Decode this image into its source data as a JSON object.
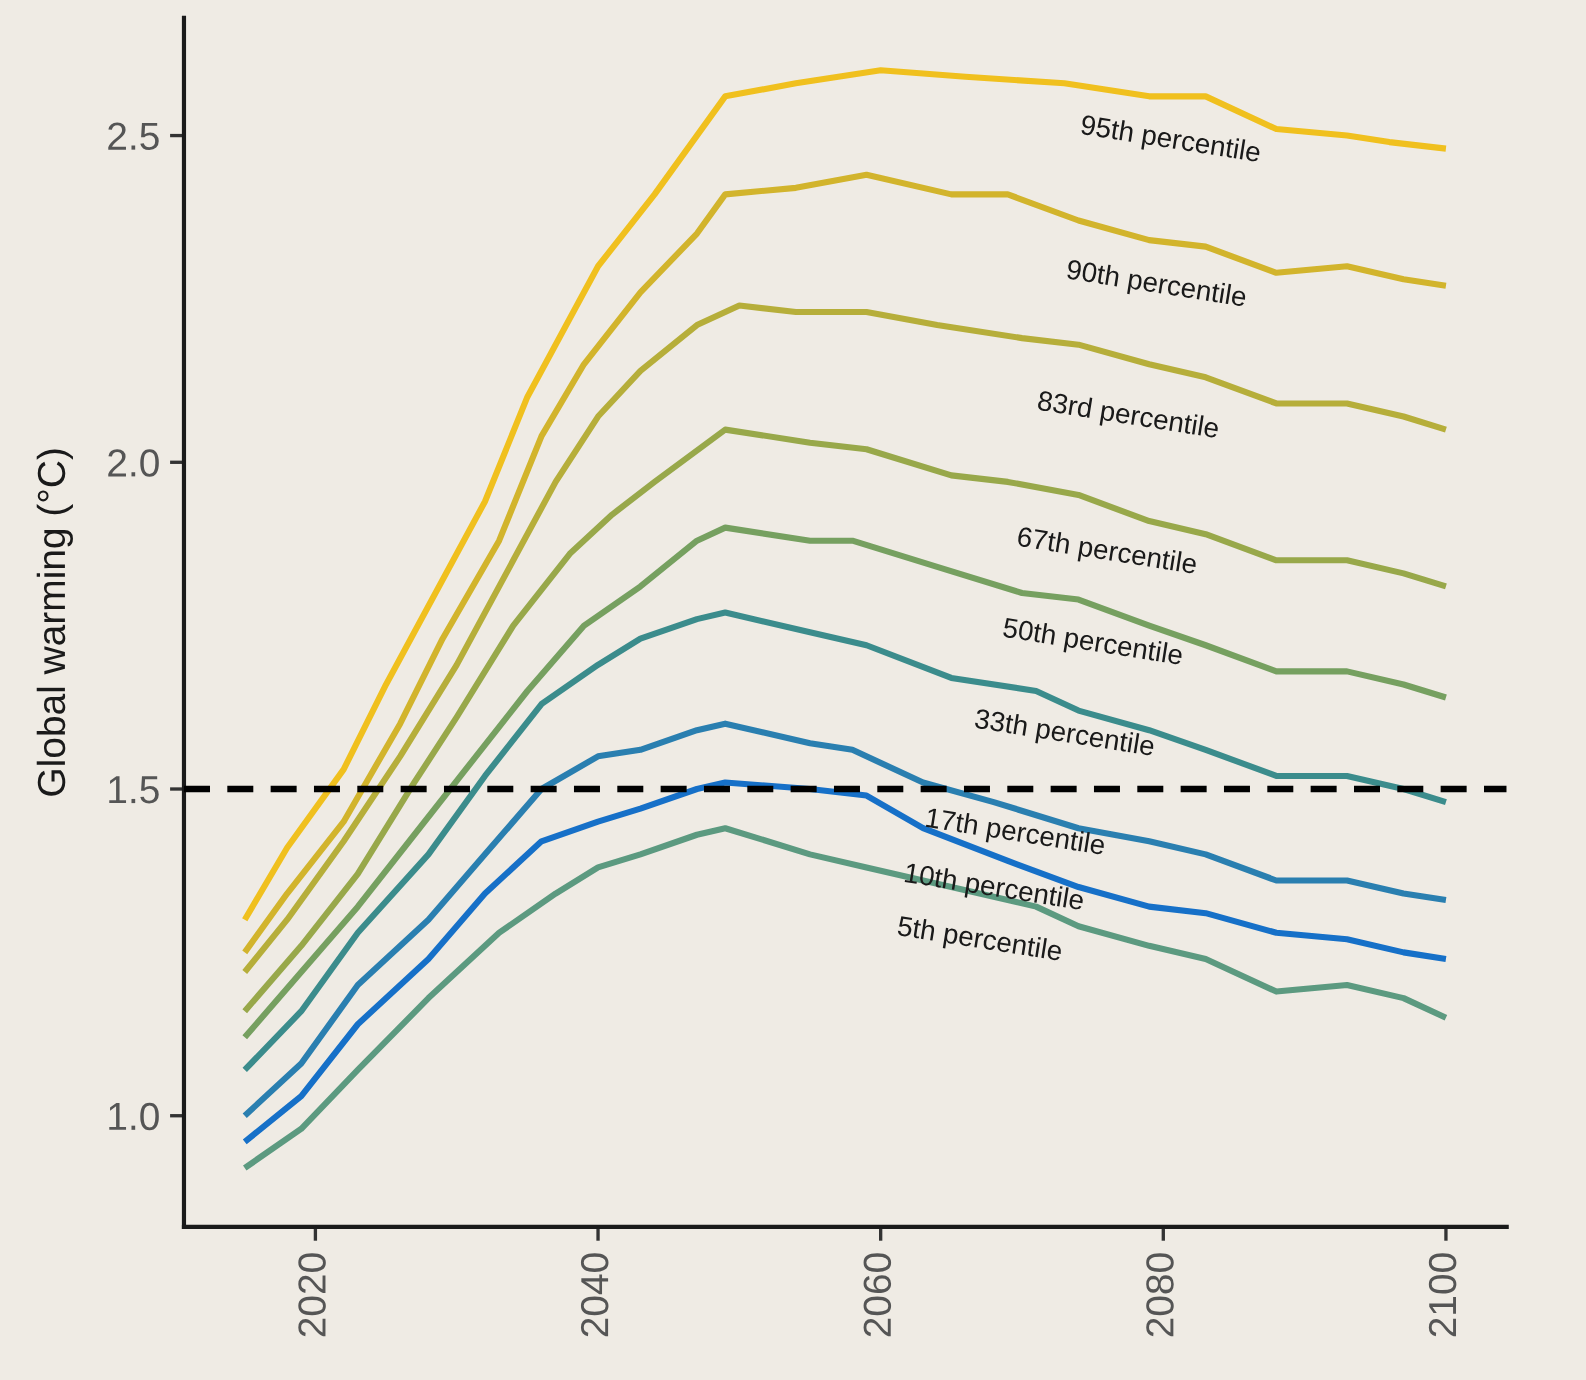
{
  "chart_data": {
    "type": "line",
    "ylabel": "Global warming (°C)",
    "xlim": [
      2010.7,
      2104.3
    ],
    "ylim": [
      0.83,
      2.68
    ],
    "xticks": [
      2020,
      2040,
      2060,
      2080,
      2100
    ],
    "yticks": [
      {
        "value": 1,
        "label": "1.0"
      },
      1.5,
      {
        "value": 2,
        "label": "2.0"
      },
      2.5
    ],
    "line_style": "solid",
    "ref_lines": [
      {
        "axis": "y",
        "value": 1.5,
        "color": "#000000",
        "line_style": "dashed"
      }
    ],
    "series": [
      {
        "name": "95th percentile",
        "color": "#f0c01e",
        "x": [
          2015,
          2018,
          2022,
          2025,
          2028,
          2032,
          2035,
          2038,
          2040,
          2044,
          2049,
          2054,
          2060,
          2066,
          2073,
          2079,
          2083,
          2088,
          2093,
          2096,
          2100
        ],
        "values": [
          1.3,
          1.41,
          1.53,
          1.66,
          1.78,
          1.94,
          2.1,
          2.22,
          2.3,
          2.41,
          2.56,
          2.58,
          2.6,
          2.59,
          2.58,
          2.56,
          2.56,
          2.51,
          2.5,
          2.49,
          2.48
        ]
      },
      {
        "name": "90th percentile",
        "color": "#d2b42c",
        "x": [
          2015,
          2018,
          2022,
          2026,
          2029,
          2033,
          2036,
          2039,
          2043,
          2047,
          2049,
          2054,
          2059,
          2065,
          2069,
          2074,
          2079,
          2083,
          2088,
          2093,
          2097,
          2100
        ],
        "values": [
          1.25,
          1.34,
          1.45,
          1.6,
          1.73,
          1.88,
          2.04,
          2.15,
          2.26,
          2.35,
          2.41,
          2.42,
          2.44,
          2.41,
          2.41,
          2.37,
          2.34,
          2.33,
          2.29,
          2.3,
          2.28,
          2.27
        ]
      },
      {
        "name": "83rd percentile",
        "color": "#b6ae3a",
        "x": [
          2015,
          2018,
          2022,
          2026,
          2030,
          2034,
          2037,
          2040,
          2043,
          2047,
          2050,
          2054,
          2059,
          2064,
          2070,
          2074,
          2079,
          2083,
          2088,
          2093,
          2097,
          2100
        ],
        "values": [
          1.22,
          1.3,
          1.42,
          1.55,
          1.69,
          1.85,
          1.97,
          2.07,
          2.14,
          2.21,
          2.24,
          2.23,
          2.23,
          2.21,
          2.19,
          2.18,
          2.15,
          2.13,
          2.09,
          2.09,
          2.07,
          2.05
        ]
      },
      {
        "name": "67th percentile",
        "color": "#98a84a",
        "x": [
          2015,
          2019,
          2023,
          2027,
          2030,
          2034,
          2038,
          2041,
          2044,
          2049,
          2055,
          2059,
          2065,
          2069,
          2074,
          2079,
          2083,
          2088,
          2093,
          2097,
          2100
        ],
        "values": [
          1.16,
          1.26,
          1.37,
          1.51,
          1.61,
          1.75,
          1.86,
          1.92,
          1.97,
          2.05,
          2.03,
          2.02,
          1.98,
          1.97,
          1.95,
          1.91,
          1.89,
          1.85,
          1.85,
          1.83,
          1.81
        ]
      },
      {
        "name": "50th percentile",
        "color": "#76a060",
        "x": [
          2015,
          2019,
          2023,
          2027,
          2031,
          2035,
          2039,
          2043,
          2047,
          2049,
          2055,
          2058,
          2064,
          2070,
          2074,
          2079,
          2083,
          2088,
          2093,
          2097,
          2100
        ],
        "values": [
          1.12,
          1.22,
          1.32,
          1.43,
          1.54,
          1.65,
          1.75,
          1.81,
          1.88,
          1.9,
          1.88,
          1.88,
          1.84,
          1.8,
          1.79,
          1.75,
          1.72,
          1.68,
          1.68,
          1.66,
          1.64
        ]
      },
      {
        "name": "33th percentile",
        "color": "#3b8c8c",
        "x": [
          2015,
          2019,
          2023,
          2028,
          2032,
          2036,
          2040,
          2043,
          2047,
          2049,
          2055,
          2059,
          2065,
          2071,
          2074,
          2079,
          2083,
          2088,
          2093,
          2097,
          2100
        ],
        "values": [
          1.07,
          1.16,
          1.28,
          1.4,
          1.52,
          1.63,
          1.69,
          1.73,
          1.76,
          1.77,
          1.74,
          1.72,
          1.67,
          1.65,
          1.62,
          1.59,
          1.56,
          1.52,
          1.52,
          1.5,
          1.48
        ]
      },
      {
        "name": "17th percentile",
        "color": "#2a7fb0",
        "x": [
          2015,
          2019,
          2023,
          2028,
          2032,
          2036,
          2040,
          2043,
          2047,
          2049,
          2055,
          2058,
          2063,
          2068,
          2074,
          2079,
          2083,
          2088,
          2093,
          2097,
          2100
        ],
        "values": [
          1.0,
          1.08,
          1.2,
          1.3,
          1.4,
          1.5,
          1.55,
          1.56,
          1.59,
          1.6,
          1.57,
          1.56,
          1.51,
          1.48,
          1.44,
          1.42,
          1.4,
          1.36,
          1.36,
          1.34,
          1.33
        ]
      },
      {
        "name": "10th percentile",
        "color": "#1670c8",
        "x": [
          2015,
          2019,
          2023,
          2028,
          2032,
          2036,
          2040,
          2043,
          2047,
          2049,
          2055,
          2059,
          2063,
          2069,
          2074,
          2079,
          2083,
          2088,
          2093,
          2097,
          2100
        ],
        "values": [
          0.96,
          1.03,
          1.14,
          1.24,
          1.34,
          1.42,
          1.45,
          1.47,
          1.5,
          1.51,
          1.5,
          1.49,
          1.44,
          1.39,
          1.35,
          1.32,
          1.31,
          1.28,
          1.27,
          1.25,
          1.24
        ]
      },
      {
        "name": "5th percentile",
        "color": "#5c9a80",
        "x": [
          2015,
          2019,
          2023,
          2028,
          2033,
          2037,
          2040,
          2043,
          2047,
          2049,
          2055,
          2059,
          2065,
          2071,
          2074,
          2079,
          2083,
          2088,
          2093,
          2097,
          2100
        ],
        "values": [
          0.92,
          0.98,
          1.07,
          1.18,
          1.28,
          1.34,
          1.38,
          1.4,
          1.43,
          1.44,
          1.4,
          1.38,
          1.35,
          1.32,
          1.29,
          1.26,
          1.24,
          1.19,
          1.2,
          1.18,
          1.15
        ]
      }
    ]
  }
}
